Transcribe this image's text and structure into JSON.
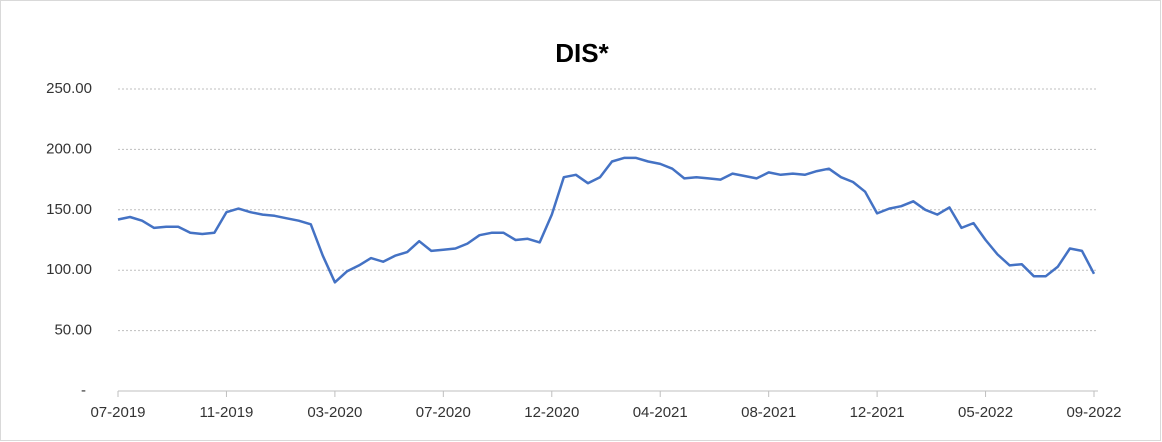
{
  "chart_data": {
    "type": "line",
    "title": "DIS*",
    "categories": [
      "07-2019",
      null,
      null,
      null,
      null,
      null,
      null,
      null,
      null,
      "11-2019",
      null,
      null,
      null,
      null,
      null,
      null,
      null,
      null,
      "03-2020",
      null,
      null,
      null,
      null,
      null,
      null,
      null,
      null,
      "07-2020",
      null,
      null,
      null,
      null,
      null,
      null,
      null,
      null,
      "12-2020",
      null,
      null,
      null,
      null,
      null,
      null,
      null,
      null,
      "04-2021",
      null,
      null,
      null,
      null,
      null,
      null,
      null,
      null,
      "08-2021",
      null,
      null,
      null,
      null,
      null,
      null,
      null,
      null,
      "12-2021",
      null,
      null,
      null,
      null,
      null,
      null,
      null,
      null,
      "05-2022",
      null,
      null,
      null,
      null,
      null,
      null,
      null,
      null,
      "09-2022"
    ],
    "series": [
      {
        "name": "DIS",
        "color": "#4472c4",
        "values": [
          142,
          144,
          141,
          135,
          136,
          136,
          131,
          130,
          131,
          148,
          151,
          148,
          146,
          145,
          143,
          141,
          138,
          112,
          90,
          99,
          104,
          110,
          107,
          112,
          115,
          124,
          116,
          117,
          118,
          122,
          129,
          131,
          131,
          125,
          126,
          123,
          146,
          177,
          179,
          172,
          177,
          190,
          193,
          193,
          190,
          188,
          184,
          176,
          177,
          176,
          175,
          180,
          178,
          176,
          181,
          179,
          180,
          179,
          182,
          184,
          177,
          173,
          165,
          147,
          151,
          153,
          157,
          150,
          146,
          152,
          135,
          139,
          125,
          113,
          104,
          105,
          95,
          95,
          103,
          118,
          116,
          97
        ]
      }
    ],
    "ylim": [
      0,
      250
    ],
    "yticks": [
      {
        "value": 0,
        "label": "-"
      },
      {
        "value": 50,
        "label": "50.00"
      },
      {
        "value": 100,
        "label": "100.00"
      },
      {
        "value": 150,
        "label": "150.00"
      },
      {
        "value": 200,
        "label": "200.00"
      },
      {
        "value": 250,
        "label": "250.00"
      }
    ],
    "grid": true
  }
}
